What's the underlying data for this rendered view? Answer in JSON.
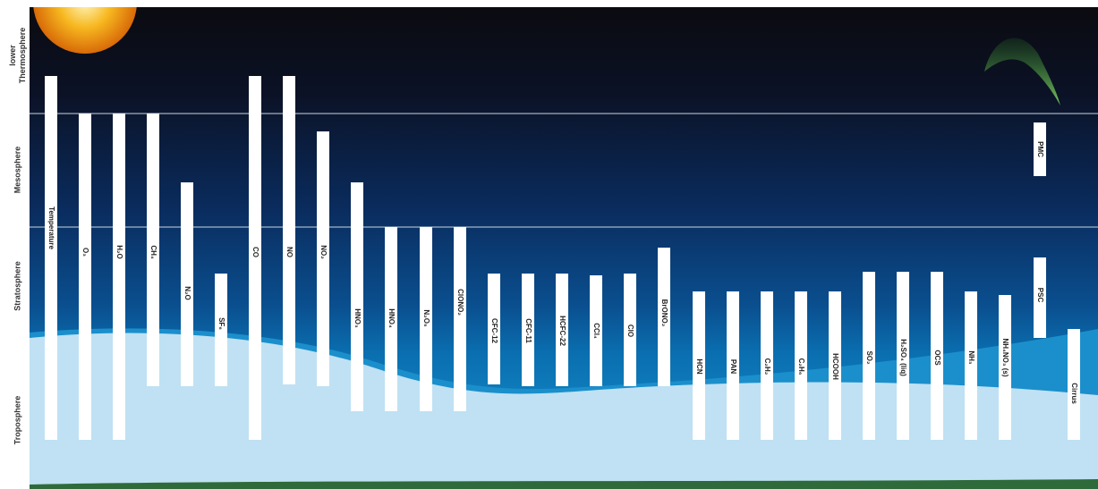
{
  "layers": [
    [
      "lower",
      "Thermosphere"
    ],
    [
      "Mesosphere"
    ],
    [
      "Stratosphere"
    ],
    [
      "Troposphere"
    ]
  ],
  "species": [
    "Temperature",
    "O₃",
    "H₂O",
    "CH₄",
    "N₂O",
    "SF₆",
    "CO",
    "NO",
    "NO₂",
    "HNO₃",
    "HNO₄",
    "N₂O₅",
    "ClONO₂",
    "CFC-12",
    "CFC-11",
    "HCFC-22",
    "CCl₄",
    "ClO",
    "BrONO₂",
    "HCN",
    "PAN",
    "C₂H₂",
    "C₂H₆",
    "HCOOH",
    "SO₂",
    "H₂SO₄ (liq)",
    "OCS",
    "NH₃",
    "NH₄NO₃ (s)",
    "PSC",
    "PMC",
    "Cirrus"
  ]
}
